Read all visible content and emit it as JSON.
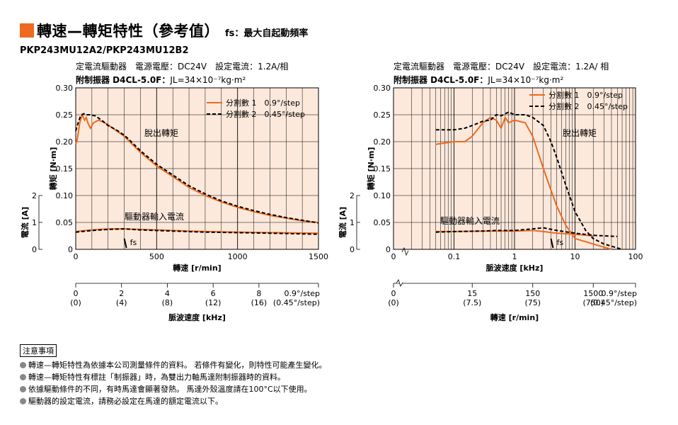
{
  "title": "轉速—轉矩特性（參考值）",
  "subtitle": "fs：最大自起動頻率",
  "model": "PKP243MU12A2/PKP243MU12B2",
  "colors": {
    "orange": "#ee6a1f",
    "black": "#000000",
    "bg_right": "#fce9dc"
  },
  "chart_data": [
    {
      "type": "line",
      "header_line1": "定電流驅動器　電源電壓：DC24V　設定電流：1.2A/相",
      "header_line2_prefix": "附制振器 D4CL-5.0F：",
      "header_line2_suffix": "JL=34×10⁻⁷kg·m²",
      "ylabel_torque": "轉矩 [N·m]",
      "ylabel_current": "電流 [A]",
      "xlabel": "轉速 [r/min]",
      "xlabel2": "脈波速度 [kHz]",
      "ylim": [
        0,
        0.3
      ],
      "yticks": [
        "0",
        "0.05",
        "0.10",
        "0.15",
        "0.20",
        "0.25",
        "0.30"
      ],
      "current_ticks": [
        "0",
        "1",
        "2"
      ],
      "xlim": [
        0,
        1500
      ],
      "xticks": [
        "0",
        "500",
        "1000",
        "1500"
      ],
      "pulse_ticks": [
        "0",
        "2",
        "4",
        "6",
        "8",
        "0.9°/step"
      ],
      "pulse_ticks_sub": [
        "(0)",
        "(4)",
        "(8)",
        "(12)",
        "(16)",
        "(0.45°/step)"
      ],
      "legend": [
        "分割數 1　0.9°/step",
        "分割數 2　0.45°/step"
      ],
      "label_pullout": "脫出轉矩",
      "label_current": "驅動器輸入電流",
      "label_fs": "fs",
      "series": [
        {
          "name": "分割數 1　0.9°/step",
          "style": "solid",
          "color": "#ee6a1f",
          "x": [
            0,
            10,
            25,
            40,
            55,
            65,
            75,
            90,
            110,
            140,
            180,
            230,
            300,
            350,
            400,
            500,
            600,
            700,
            800,
            900,
            1000,
            1100,
            1200,
            1300,
            1400,
            1500
          ],
          "y": [
            0.195,
            0.205,
            0.235,
            0.25,
            0.24,
            0.245,
            0.235,
            0.225,
            0.235,
            0.24,
            0.235,
            0.225,
            0.21,
            0.195,
            0.18,
            0.155,
            0.135,
            0.115,
            0.1,
            0.088,
            0.078,
            0.07,
            0.063,
            0.058,
            0.053,
            0.05
          ]
        },
        {
          "name": "分割數 2　0.45°/step",
          "style": "dashed",
          "color": "#000000",
          "x": [
            0,
            15,
            30,
            50,
            70,
            90,
            120,
            160,
            200,
            250,
            300,
            350,
            400,
            500,
            600,
            700,
            800,
            900,
            1000,
            1100,
            1200,
            1300,
            1400,
            1500
          ],
          "y": [
            0.22,
            0.235,
            0.248,
            0.252,
            0.25,
            0.25,
            0.248,
            0.24,
            0.23,
            0.222,
            0.212,
            0.198,
            0.183,
            0.158,
            0.138,
            0.118,
            0.103,
            0.09,
            0.08,
            0.072,
            0.065,
            0.059,
            0.054,
            0.049
          ]
        },
        {
          "name": "驅動器輸入電流 分割數 1",
          "style": "solid",
          "color": "#ee6a1f",
          "x": [
            0,
            100,
            200,
            300,
            400,
            600,
            800,
            1000,
            1200,
            1500
          ],
          "y": [
            0.033,
            0.036,
            0.038,
            0.038,
            0.037,
            0.035,
            0.033,
            0.032,
            0.031,
            0.03
          ]
        },
        {
          "name": "驅動器輸入電流 分割數 2",
          "style": "dashed",
          "color": "#000000",
          "x": [
            0,
            100,
            200,
            300,
            400,
            600,
            800,
            1000,
            1200,
            1500
          ],
          "y": [
            0.032,
            0.035,
            0.037,
            0.038,
            0.036,
            0.034,
            0.032,
            0.031,
            0.03,
            0.028
          ]
        }
      ],
      "fs_x": 300
    },
    {
      "type": "line",
      "header_line1": "定電流驅動器　電源電壓：DC24V　設定電流：1.2A/ 相",
      "header_line2_prefix": "附制振器 D4CL-5.0F：",
      "header_line2_suffix": "JL=34×10⁻⁷kg·m²",
      "ylabel_torque": "轉矩 [N·m]",
      "ylabel_current": "電流 [A]",
      "xlabel": "脈波速度 [kHz]",
      "xlabel2": "轉速 [r/min]",
      "xscale": "log",
      "ylim": [
        0,
        0.3
      ],
      "yticks": [
        "0",
        "0.05",
        "0.10",
        "0.15",
        "0.20",
        "0.25",
        "0.30"
      ],
      "current_ticks": [
        "0",
        "1",
        "2"
      ],
      "xlim": [
        0.01,
        100
      ],
      "xticks": [
        "0",
        "0.1",
        "1",
        "10",
        "100"
      ],
      "speed_ticks": [
        "0",
        "15",
        "150",
        "1500",
        "0.9°/step"
      ],
      "speed_ticks_sub": [
        "(0)",
        "(7.5)",
        "(75)",
        "(750)",
        "(0.45°/step)"
      ],
      "legend": [
        "分割數 1　0.9°/step",
        "分割數 2　0.45°/step"
      ],
      "label_pullout": "脫出轉矩",
      "label_current": "驅動器輸入電流",
      "label_fs": "fs",
      "series": [
        {
          "name": "分割數 1　0.9°/step",
          "style": "solid",
          "color": "#ee6a1f",
          "x": [
            0.05,
            0.1,
            0.15,
            0.2,
            0.3,
            0.4,
            0.5,
            0.6,
            0.7,
            0.8,
            1.0,
            1.5,
            2,
            3,
            4,
            5,
            7,
            10,
            20,
            40
          ],
          "y": [
            0.195,
            0.2,
            0.2,
            0.21,
            0.235,
            0.245,
            0.24,
            0.225,
            0.245,
            0.235,
            0.24,
            0.235,
            0.21,
            0.15,
            0.11,
            0.08,
            0.045,
            0.02,
            0.01,
            0.0
          ]
        },
        {
          "name": "分割數 2　0.45°/step",
          "style": "dashed",
          "color": "#000000",
          "x": [
            0.05,
            0.1,
            0.15,
            0.2,
            0.3,
            0.4,
            0.5,
            0.6,
            0.8,
            1.0,
            1.5,
            2,
            3,
            4,
            5,
            7,
            10,
            15,
            20,
            30,
            60
          ],
          "y": [
            0.222,
            0.222,
            0.225,
            0.23,
            0.238,
            0.24,
            0.25,
            0.248,
            0.255,
            0.25,
            0.25,
            0.245,
            0.23,
            0.2,
            0.17,
            0.12,
            0.07,
            0.035,
            0.02,
            0.01,
            0.0
          ]
        },
        {
          "name": "驅動器輸入電流 分割數 1",
          "style": "solid",
          "color": "#ee6a1f",
          "x": [
            0.05,
            0.1,
            0.3,
            0.5,
            1,
            2,
            3,
            5,
            10,
            20
          ],
          "y": [
            0.033,
            0.033,
            0.034,
            0.034,
            0.034,
            0.035,
            0.033,
            0.03,
            0.028,
            0.025
          ]
        },
        {
          "name": "驅動器輸入電流 分割數 2",
          "style": "dashed",
          "color": "#000000",
          "x": [
            0.05,
            0.1,
            0.3,
            0.5,
            1,
            2,
            3,
            5,
            10,
            20,
            50
          ],
          "y": [
            0.032,
            0.033,
            0.034,
            0.035,
            0.035,
            0.038,
            0.04,
            0.035,
            0.03,
            0.026,
            0.024
          ]
        }
      ],
      "fs_x": 4
    }
  ],
  "notes": {
    "heading": "注意事項",
    "items": [
      "轉速—轉矩特性為依據本公司測量條件的資料。 若條件有變化，則特性可能產生變化。",
      "轉速—轉矩特性有標註「制振器」時，為雙出力軸馬達附制振器時的資料。",
      "依據驅動條件的不同，有時馬達會顯著發熱。 馬達外殼溫度請在100°C以下使用。",
      "驅動器的設定電流，請務必設定在馬達的額定電流以下。"
    ]
  }
}
